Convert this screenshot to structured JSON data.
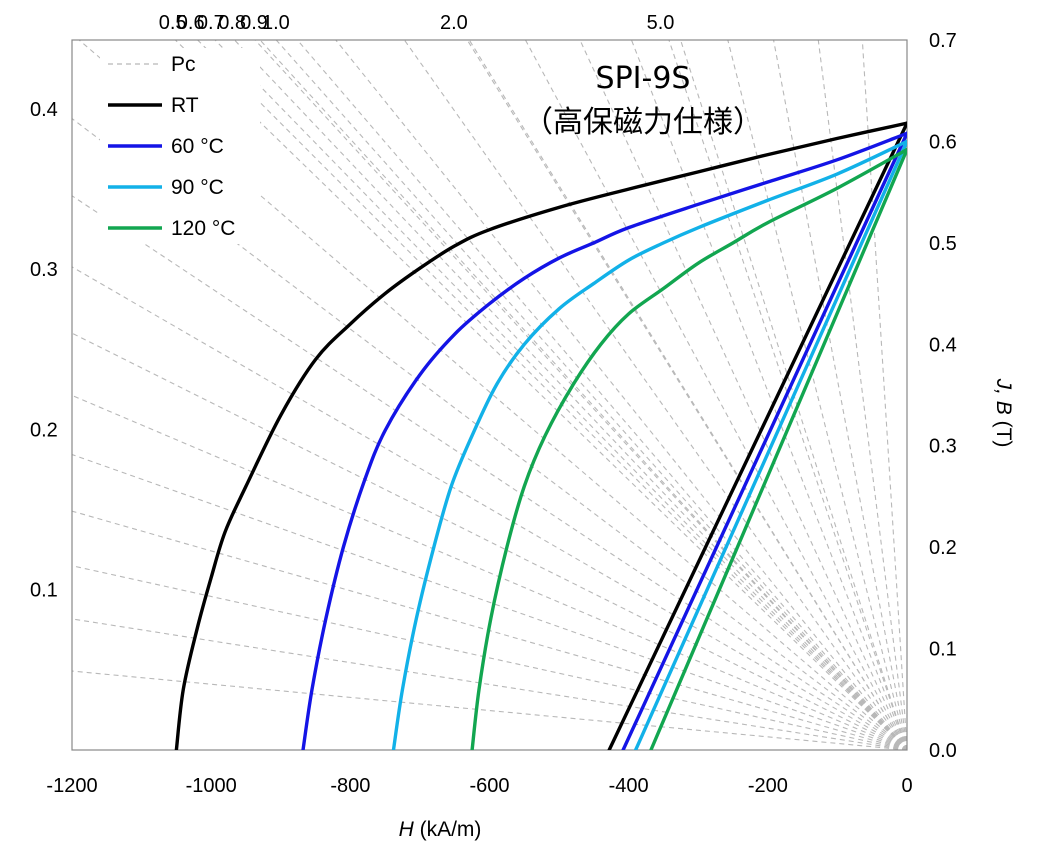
{
  "chart_data": {
    "type": "line",
    "title": "SPI-9S",
    "subtitle": "（高保磁力仕様）",
    "xlabel_italic": "H",
    "xlabel_rest": " (kA/m)",
    "ylabel_right_italic": "J, B",
    "ylabel_right_rest": " (T)",
    "xlim": [
      -1200,
      0
    ],
    "ylim_right": [
      0.0,
      0.7
    ],
    "ylim_left": [
      0.0,
      0.443
    ],
    "x_ticks": [
      -1200,
      -1000,
      -800,
      -600,
      -400,
      -200,
      0
    ],
    "x_tick_labels": [
      "-1200",
      "-1000",
      "-800",
      "-600",
      "-400",
      "-200",
      "0"
    ],
    "right_ticks": [
      0.0,
      0.1,
      0.2,
      0.3,
      0.4,
      0.5,
      0.6,
      0.7
    ],
    "right_tick_labels": [
      "0.0",
      "0.1",
      "0.2",
      "0.3",
      "0.4",
      "0.5",
      "0.6",
      "0.7"
    ],
    "left_ticks": [
      0.1,
      0.2,
      0.3,
      0.4
    ],
    "left_tick_labels": [
      "0.1",
      "0.2",
      "0.3",
      "0.4"
    ],
    "permeance_coefficients": [
      0.5,
      0.6,
      0.7,
      0.8,
      0.9,
      1.0,
      2.0,
      5.0
    ],
    "permeance_labels": [
      "0.5",
      "0.6",
      "0.7",
      "0.8",
      "0.9",
      "1.0",
      "2.0",
      "5.0"
    ],
    "pc_helper_count": 24,
    "grid": false,
    "legend_position": "top-left",
    "legend": [
      {
        "name": "Pc",
        "color": "#b8b8b8",
        "dashed": true
      },
      {
        "name": "RT",
        "color": "#000000",
        "dashed": false
      },
      {
        "name": "60 °C",
        "color": "#1414e6",
        "dashed": false
      },
      {
        "name": "90 °C",
        "color": "#12b1e8",
        "dashed": false
      },
      {
        "name": "120 °C",
        "color": "#12a650",
        "dashed": false
      }
    ],
    "series": [
      {
        "name": "RT",
        "color": "#000000",
        "J": [
          [
            -1050,
            0.0
          ],
          [
            -1040,
            0.06
          ],
          [
            -1020,
            0.12
          ],
          [
            -1000,
            0.17
          ],
          [
            -980,
            0.215
          ],
          [
            -950,
            0.26
          ],
          [
            -900,
            0.33
          ],
          [
            -850,
            0.385
          ],
          [
            -800,
            0.42
          ],
          [
            -750,
            0.45
          ],
          [
            -700,
            0.475
          ],
          [
            -650,
            0.497
          ],
          [
            -600,
            0.513
          ],
          [
            -500,
            0.535
          ],
          [
            -400,
            0.553
          ],
          [
            -300,
            0.57
          ],
          [
            -200,
            0.587
          ],
          [
            -100,
            0.603
          ],
          [
            0,
            0.618
          ]
        ],
        "B": [
          [
            -428,
            0.0
          ],
          [
            0,
            0.618
          ]
        ]
      },
      {
        "name": "60 °C",
        "color": "#1414e6",
        "J": [
          [
            -868,
            0.0
          ],
          [
            -855,
            0.06
          ],
          [
            -835,
            0.13
          ],
          [
            -810,
            0.2
          ],
          [
            -780,
            0.265
          ],
          [
            -750,
            0.315
          ],
          [
            -700,
            0.37
          ],
          [
            -650,
            0.41
          ],
          [
            -600,
            0.44
          ],
          [
            -550,
            0.465
          ],
          [
            -500,
            0.485
          ],
          [
            -450,
            0.5
          ],
          [
            -400,
            0.515
          ],
          [
            -300,
            0.538
          ],
          [
            -200,
            0.56
          ],
          [
            -100,
            0.582
          ],
          [
            0,
            0.608
          ]
        ],
        "B": [
          [
            -408,
            0.0
          ],
          [
            0,
            0.608
          ]
        ]
      },
      {
        "name": "90 °C",
        "color": "#12b1e8",
        "J": [
          [
            -738,
            0.0
          ],
          [
            -725,
            0.06
          ],
          [
            -705,
            0.13
          ],
          [
            -680,
            0.2
          ],
          [
            -655,
            0.26
          ],
          [
            -625,
            0.31
          ],
          [
            -590,
            0.36
          ],
          [
            -550,
            0.4
          ],
          [
            -500,
            0.435
          ],
          [
            -450,
            0.46
          ],
          [
            -400,
            0.483
          ],
          [
            -350,
            0.5
          ],
          [
            -300,
            0.515
          ],
          [
            -200,
            0.542
          ],
          [
            -100,
            0.568
          ],
          [
            0,
            0.6
          ]
        ],
        "B": [
          [
            -390,
            0.0
          ],
          [
            0,
            0.6
          ]
        ]
      },
      {
        "name": "120 °C",
        "color": "#12a650",
        "J": [
          [
            -625,
            0.0
          ],
          [
            -615,
            0.06
          ],
          [
            -598,
            0.13
          ],
          [
            -575,
            0.2
          ],
          [
            -550,
            0.26
          ],
          [
            -520,
            0.31
          ],
          [
            -480,
            0.36
          ],
          [
            -440,
            0.4
          ],
          [
            -400,
            0.43
          ],
          [
            -350,
            0.455
          ],
          [
            -300,
            0.48
          ],
          [
            -250,
            0.5
          ],
          [
            -200,
            0.52
          ],
          [
            -100,
            0.554
          ],
          [
            0,
            0.592
          ]
        ],
        "B": [
          [
            -368,
            0.0
          ],
          [
            0,
            0.592
          ]
        ]
      }
    ]
  }
}
